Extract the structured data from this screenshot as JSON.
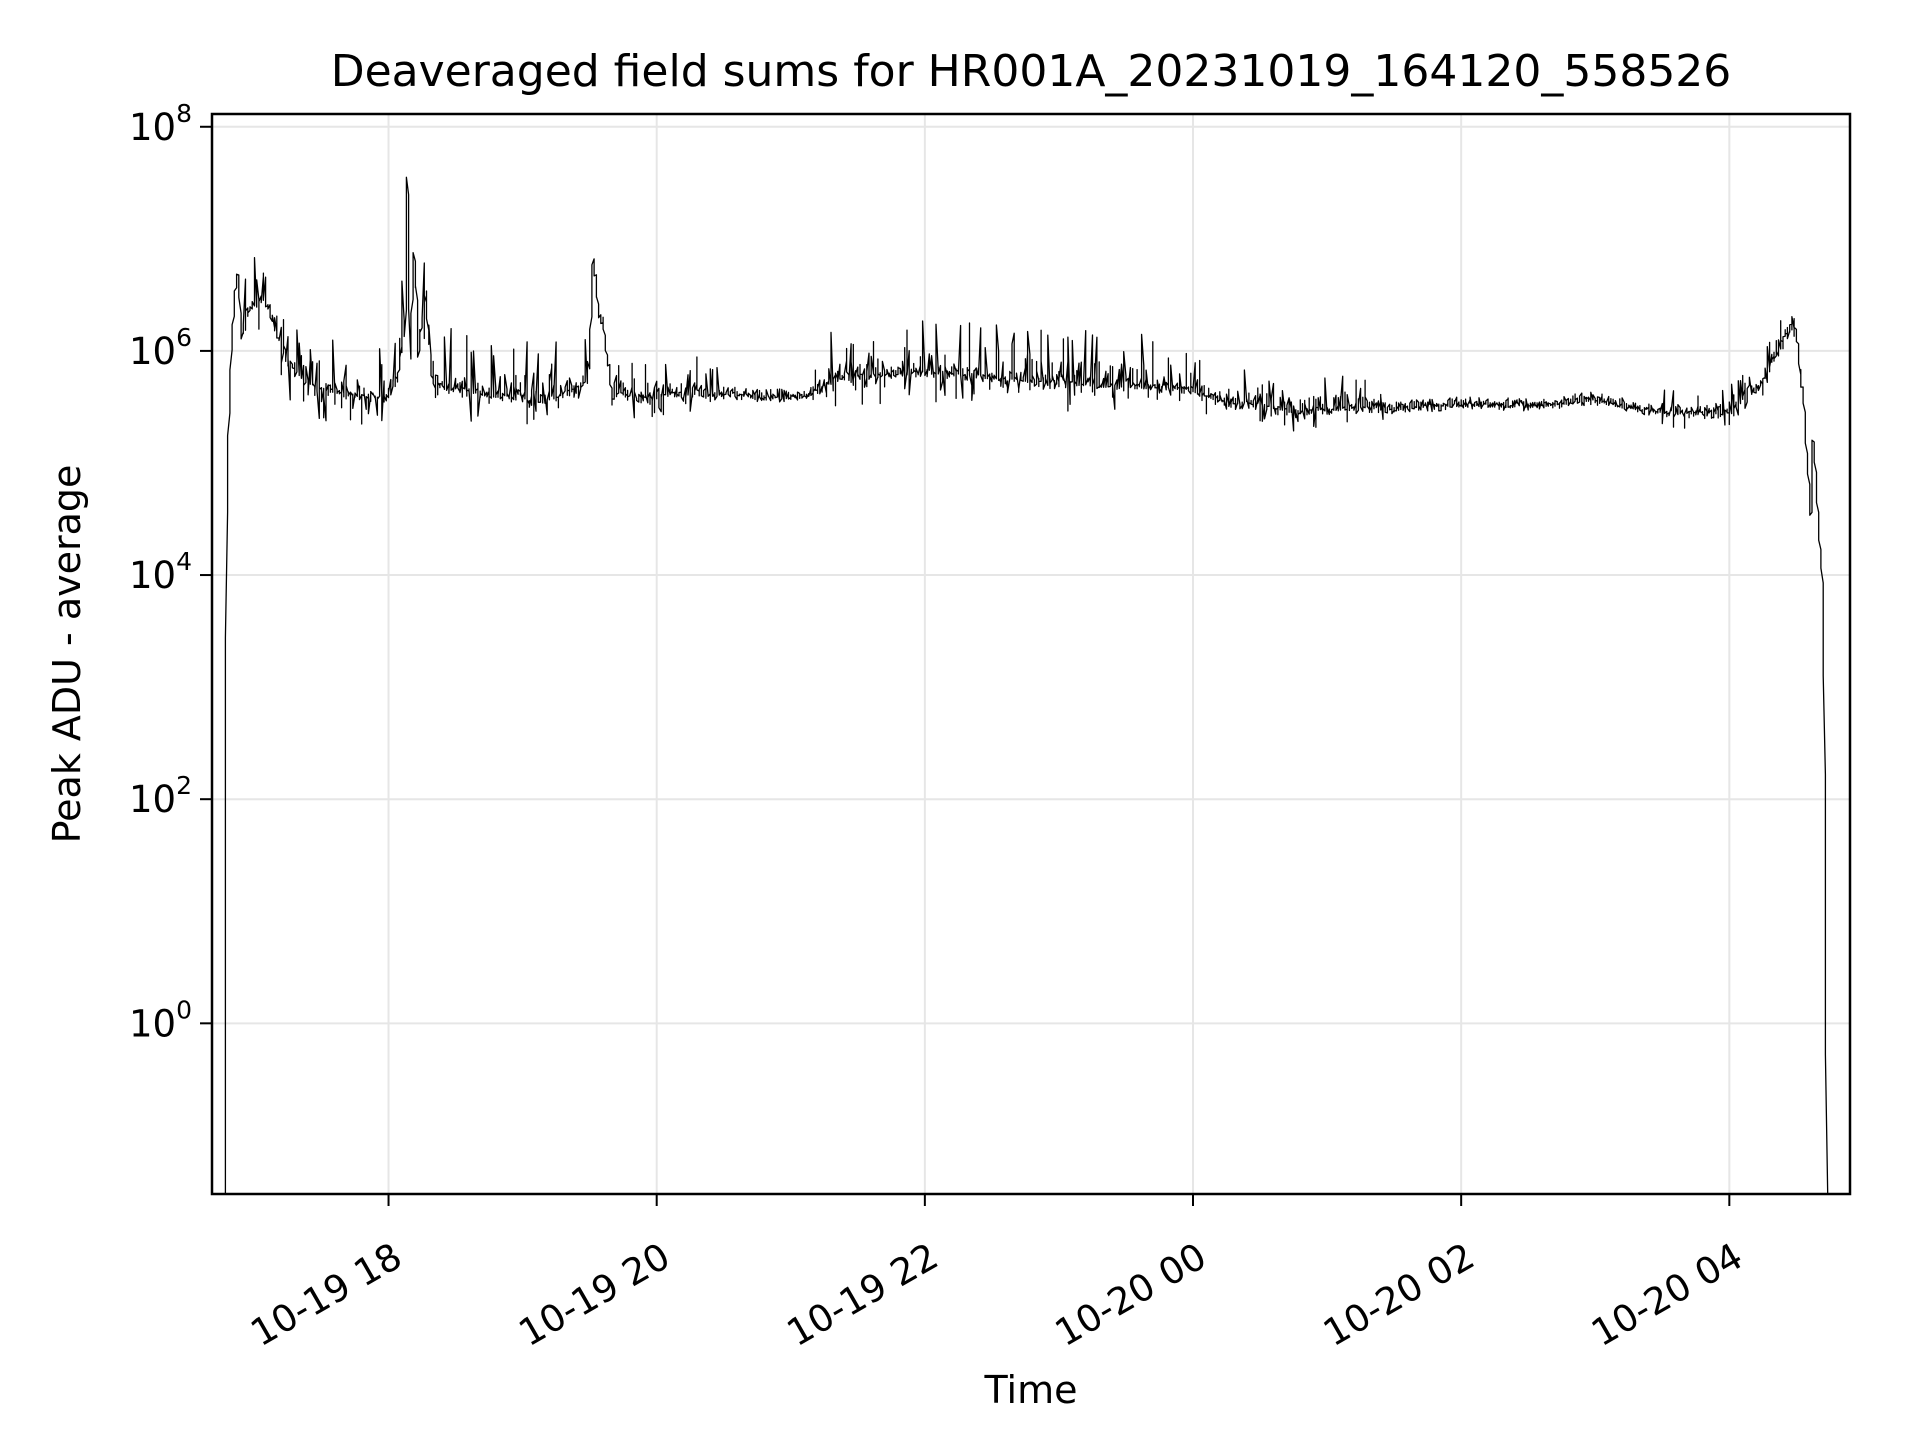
{
  "chart_data": {
    "type": "line",
    "title": "Deaveraged field sums for HR001A_20231019_164120_558526",
    "xlabel": "Time",
    "ylabel": "Peak ADU - average",
    "yscale": "log",
    "grid": true,
    "line_color": "#000000",
    "grid_color": "#e6e6e6",
    "x_ticks": [
      {
        "label": "10-19 18",
        "time": "2023-10-19T18:00"
      },
      {
        "label": "10-19 20",
        "time": "2023-10-19T20:00"
      },
      {
        "label": "10-19 22",
        "time": "2023-10-19T22:00"
      },
      {
        "label": "10-20 00",
        "time": "2023-10-20T00:00"
      },
      {
        "label": "10-20 02",
        "time": "2023-10-20T02:00"
      },
      {
        "label": "10-20 04",
        "time": "2023-10-20T04:00"
      }
    ],
    "y_ticks": [
      {
        "base": "10",
        "exp": "8",
        "value": 100000000
      },
      {
        "base": "10",
        "exp": "6",
        "value": 1000000
      },
      {
        "base": "10",
        "exp": "4",
        "value": 10000
      },
      {
        "base": "10",
        "exp": "2",
        "value": 100
      },
      {
        "base": "10",
        "exp": "0",
        "value": 1
      }
    ],
    "xlim": [
      "2023-10-19T16:41",
      "2023-10-20T04:54"
    ],
    "ylim": [
      0.03,
      130000000
    ],
    "series": [
      {
        "points": [
          [
            "2023-10-19T16:47",
            0.03
          ],
          [
            "2023-10-19T16:48",
            30000
          ],
          [
            "2023-10-19T16:49",
            200000
          ],
          [
            "2023-10-19T16:50",
            1000000
          ],
          [
            "2023-10-19T16:52",
            3500000
          ],
          [
            "2023-10-19T16:53",
            5000000
          ],
          [
            "2023-10-19T16:55",
            1200000
          ],
          [
            "2023-10-19T16:57",
            2000000
          ],
          [
            "2023-10-19T17:00",
            2500000
          ],
          [
            "2023-10-19T17:05",
            3000000
          ],
          [
            "2023-10-19T17:10",
            1500000
          ],
          [
            "2023-10-19T17:15",
            800000
          ],
          [
            "2023-10-19T17:20",
            600000
          ],
          [
            "2023-10-19T17:30",
            450000
          ],
          [
            "2023-10-19T17:45",
            400000
          ],
          [
            "2023-10-19T18:00",
            380000
          ],
          [
            "2023-10-19T18:05",
            600000
          ],
          [
            "2023-10-19T18:08",
            1800000
          ],
          [
            "2023-10-19T18:09",
            50000000
          ],
          [
            "2023-10-19T18:10",
            800000
          ],
          [
            "2023-10-19T18:12",
            8000000
          ],
          [
            "2023-10-19T18:14",
            1000000
          ],
          [
            "2023-10-19T18:17",
            3000000
          ],
          [
            "2023-10-19T18:20",
            500000
          ],
          [
            "2023-10-19T18:30",
            450000
          ],
          [
            "2023-10-19T18:45",
            400000
          ],
          [
            "2023-10-19T19:00",
            380000
          ],
          [
            "2023-10-19T19:15",
            380000
          ],
          [
            "2023-10-19T19:30",
            500000
          ],
          [
            "2023-10-19T19:32",
            7000000
          ],
          [
            "2023-10-19T19:34",
            2500000
          ],
          [
            "2023-10-19T19:37",
            1500000
          ],
          [
            "2023-10-19T19:40",
            450000
          ],
          [
            "2023-10-19T19:50",
            380000
          ],
          [
            "2023-10-19T20:00",
            400000
          ],
          [
            "2023-10-19T20:30",
            400000
          ],
          [
            "2023-10-19T21:00",
            380000
          ],
          [
            "2023-10-19T21:10",
            400000
          ],
          [
            "2023-10-19T21:20",
            550000
          ],
          [
            "2023-10-19T21:40",
            600000
          ],
          [
            "2023-10-19T22:00",
            650000
          ],
          [
            "2023-10-19T22:20",
            600000
          ],
          [
            "2023-10-19T22:40",
            550000
          ],
          [
            "2023-10-19T23:00",
            520000
          ],
          [
            "2023-10-19T23:30",
            480000
          ],
          [
            "2023-10-20T00:00",
            450000
          ],
          [
            "2023-10-20T00:15",
            350000
          ],
          [
            "2023-10-20T00:30",
            320000
          ],
          [
            "2023-10-20T00:45",
            280000
          ],
          [
            "2023-10-20T01:00",
            300000
          ],
          [
            "2023-10-20T01:30",
            300000
          ],
          [
            "2023-10-20T02:00",
            330000
          ],
          [
            "2023-10-20T02:30",
            320000
          ],
          [
            "2023-10-20T03:00",
            360000
          ],
          [
            "2023-10-20T03:20",
            300000
          ],
          [
            "2023-10-20T03:40",
            270000
          ],
          [
            "2023-10-20T04:00",
            280000
          ],
          [
            "2023-10-20T04:15",
            500000
          ],
          [
            "2023-10-20T04:25",
            1300000
          ],
          [
            "2023-10-20T04:30",
            1600000
          ],
          [
            "2023-10-20T04:32",
            700000
          ],
          [
            "2023-10-20T04:34",
            300000
          ],
          [
            "2023-10-20T04:37",
            30000
          ],
          [
            "2023-10-20T04:38",
            180000
          ],
          [
            "2023-10-20T04:40",
            40000
          ],
          [
            "2023-10-20T04:42",
            10000
          ],
          [
            "2023-10-20T04:43",
            1000
          ],
          [
            "2023-10-20T04:44",
            0.03
          ]
        ]
      }
    ]
  }
}
